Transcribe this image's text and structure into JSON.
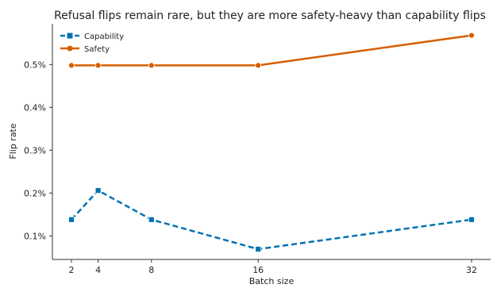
{
  "chart_data": {
    "type": "line",
    "title": "Refusal flips remain rare, but they are more safety-heavy than capability flips",
    "xlabel": "Batch size",
    "ylabel": "Flip rate",
    "x": [
      2,
      4,
      8,
      16,
      32
    ],
    "x_ticks": [
      "2",
      "4",
      "8",
      "16",
      "32"
    ],
    "ylim": [
      0.045,
      0.595
    ],
    "y_ticks": [
      0.1,
      0.2,
      0.3,
      0.4,
      0.5
    ],
    "y_tick_labels": [
      "0.1%",
      "0.2%",
      "0.3%",
      "0.4%",
      "0.5%"
    ],
    "legend_position": "top-left",
    "grid": false,
    "series": [
      {
        "name": "Capability",
        "values": [
          0.138,
          0.206,
          0.138,
          0.069,
          0.138
        ],
        "color": "#0072b2",
        "marker": "square",
        "line_style": "dashed"
      },
      {
        "name": "Safety",
        "values": [
          0.498,
          0.498,
          0.498,
          0.498,
          0.568
        ],
        "color": "#d55e00",
        "marker": "circle",
        "line_style": "solid"
      }
    ]
  }
}
